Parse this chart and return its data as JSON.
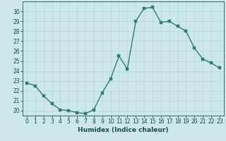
{
  "x": [
    0,
    1,
    2,
    3,
    4,
    5,
    6,
    7,
    8,
    9,
    10,
    11,
    12,
    13,
    14,
    15,
    16,
    17,
    18,
    19,
    20,
    21,
    22,
    23
  ],
  "y": [
    22.8,
    22.5,
    21.5,
    20.7,
    20.1,
    20.0,
    19.8,
    19.7,
    20.1,
    21.8,
    23.2,
    25.5,
    24.2,
    29.0,
    30.3,
    30.4,
    28.9,
    29.0,
    28.5,
    28.0,
    26.3,
    25.2,
    24.8,
    24.3
  ],
  "bg_color": "#cce8e8",
  "line_color": "#2e7d6e",
  "marker_color": "#2e7d6e",
  "grid_color": "#b8d8d8",
  "xlabel": "Humidex (Indice chaleur)",
  "ylim": [
    19.5,
    31.0
  ],
  "xlim": [
    -0.5,
    23.5
  ],
  "yticks": [
    20,
    21,
    22,
    23,
    24,
    25,
    26,
    27,
    28,
    29,
    30
  ],
  "xticks": [
    0,
    1,
    2,
    3,
    4,
    5,
    6,
    7,
    8,
    9,
    10,
    11,
    12,
    13,
    14,
    15,
    16,
    17,
    18,
    19,
    20,
    21,
    22,
    23
  ],
  "xtick_labels": [
    "0",
    "1",
    "2",
    "3",
    "4",
    "5",
    "6",
    "7",
    "8",
    "9",
    "10",
    "11",
    "12",
    "13",
    "14",
    "15",
    "16",
    "17",
    "18",
    "19",
    "20",
    "21",
    "22",
    "23"
  ],
  "marker_size": 2.5,
  "line_width": 1.0,
  "label_fontsize": 6.5,
  "tick_fontsize": 5.5,
  "tick_color": "#336666",
  "spine_color": "#336666",
  "text_color": "#1a4a4a"
}
